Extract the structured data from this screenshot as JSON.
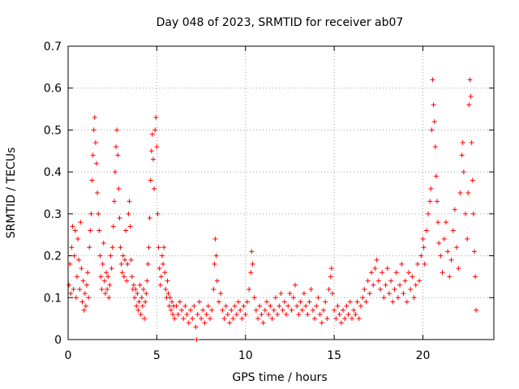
{
  "chart_data": {
    "type": "scatter",
    "title": "Day 048 of 2023, SRMTID for receiver ab07",
    "xlabel": "GPS time / hours",
    "ylabel": "SRMTID / TECUs",
    "xlim": [
      0,
      24
    ],
    "ylim": [
      0,
      0.7
    ],
    "xticks": [
      0,
      5,
      10,
      15,
      20
    ],
    "xtick_labels": [
      "0",
      "5",
      "10",
      "15",
      "20"
    ],
    "yticks": [
      0,
      0.1,
      0.2,
      0.3,
      0.4,
      0.5,
      0.6,
      0.7
    ],
    "ytick_labels": [
      "0",
      "0.1",
      "0.2",
      "0.3",
      "0.4",
      "0.5",
      "0.6",
      "0.7"
    ],
    "grid": true,
    "marker": "+",
    "color": "#ff0000",
    "series": [
      {
        "name": "SRMTID",
        "points": [
          [
            0.05,
            0.13
          ],
          [
            0.1,
            0.18
          ],
          [
            0.15,
            0.11
          ],
          [
            0.2,
            0.22
          ],
          [
            0.25,
            0.27
          ],
          [
            0.3,
            0.12
          ],
          [
            0.35,
            0.2
          ],
          [
            0.4,
            0.26
          ],
          [
            0.45,
            0.1
          ],
          [
            0.5,
            0.15
          ],
          [
            0.55,
            0.24
          ],
          [
            0.6,
            0.19
          ],
          [
            0.65,
            0.12
          ],
          [
            0.7,
            0.28
          ],
          [
            0.75,
            0.17
          ],
          [
            0.8,
            0.09
          ],
          [
            0.85,
            0.14
          ],
          [
            0.9,
            0.07
          ],
          [
            0.95,
            0.11
          ],
          [
            1.0,
            0.08
          ],
          [
            1.05,
            0.13
          ],
          [
            1.1,
            0.16
          ],
          [
            1.15,
            0.1
          ],
          [
            1.2,
            0.22
          ],
          [
            1.25,
            0.26
          ],
          [
            1.3,
            0.3
          ],
          [
            1.35,
            0.38
          ],
          [
            1.4,
            0.44
          ],
          [
            1.45,
            0.5
          ],
          [
            1.5,
            0.53
          ],
          [
            1.55,
            0.47
          ],
          [
            1.6,
            0.42
          ],
          [
            1.65,
            0.35
          ],
          [
            1.7,
            0.3
          ],
          [
            1.75,
            0.26
          ],
          [
            1.8,
            0.2
          ],
          [
            1.85,
            0.15
          ],
          [
            1.9,
            0.12
          ],
          [
            1.95,
            0.18
          ],
          [
            2.0,
            0.23
          ],
          [
            2.05,
            0.14
          ],
          [
            2.1,
            0.11
          ],
          [
            2.15,
            0.16
          ],
          [
            2.2,
            0.12
          ],
          [
            2.25,
            0.15
          ],
          [
            2.3,
            0.1
          ],
          [
            2.35,
            0.13
          ],
          [
            2.4,
            0.2
          ],
          [
            2.45,
            0.17
          ],
          [
            2.5,
            0.22
          ],
          [
            2.55,
            0.27
          ],
          [
            2.6,
            0.33
          ],
          [
            2.65,
            0.4
          ],
          [
            2.7,
            0.46
          ],
          [
            2.75,
            0.5
          ],
          [
            2.8,
            0.44
          ],
          [
            2.85,
            0.36
          ],
          [
            2.9,
            0.29
          ],
          [
            2.95,
            0.22
          ],
          [
            3.0,
            0.18
          ],
          [
            3.05,
            0.16
          ],
          [
            3.1,
            0.2
          ],
          [
            3.15,
            0.15
          ],
          [
            3.2,
            0.19
          ],
          [
            3.25,
            0.26
          ],
          [
            3.3,
            0.14
          ],
          [
            3.35,
            0.18
          ],
          [
            3.4,
            0.3
          ],
          [
            3.45,
            0.33
          ],
          [
            3.5,
            0.27
          ],
          [
            3.55,
            0.19
          ],
          [
            3.6,
            0.15
          ],
          [
            3.65,
            0.12
          ],
          [
            3.7,
            0.13
          ],
          [
            3.75,
            0.1
          ],
          [
            3.8,
            0.12
          ],
          [
            3.85,
            0.08
          ],
          [
            3.9,
            0.11
          ],
          [
            3.95,
            0.07
          ],
          [
            4.0,
            0.09
          ],
          [
            4.05,
            0.13
          ],
          [
            4.1,
            0.06
          ],
          [
            4.15,
            0.1
          ],
          [
            4.2,
            0.08
          ],
          [
            4.25,
            0.12
          ],
          [
            4.3,
            0.05
          ],
          [
            4.35,
            0.09
          ],
          [
            4.4,
            0.11
          ],
          [
            4.45,
            0.14
          ],
          [
            4.5,
            0.18
          ],
          [
            4.55,
            0.22
          ],
          [
            4.6,
            0.29
          ],
          [
            4.65,
            0.38
          ],
          [
            4.7,
            0.45
          ],
          [
            4.75,
            0.49
          ],
          [
            4.8,
            0.43
          ],
          [
            4.85,
            0.36
          ],
          [
            4.9,
            0.5
          ],
          [
            4.95,
            0.53
          ],
          [
            5.0,
            0.46
          ],
          [
            5.05,
            0.3
          ],
          [
            5.1,
            0.22
          ],
          [
            5.15,
            0.17
          ],
          [
            5.2,
            0.13
          ],
          [
            5.25,
            0.15
          ],
          [
            5.3,
            0.2
          ],
          [
            5.35,
            0.18
          ],
          [
            5.4,
            0.22
          ],
          [
            5.45,
            0.16
          ],
          [
            5.5,
            0.12
          ],
          [
            5.55,
            0.1
          ],
          [
            5.6,
            0.14
          ],
          [
            5.65,
            0.11
          ],
          [
            5.7,
            0.08
          ],
          [
            5.75,
            0.1
          ],
          [
            5.8,
            0.07
          ],
          [
            5.85,
            0.09
          ],
          [
            5.9,
            0.06
          ],
          [
            5.95,
            0.08
          ],
          [
            6.0,
            0.05
          ],
          [
            6.1,
            0.08
          ],
          [
            6.2,
            0.06
          ],
          [
            6.3,
            0.09
          ],
          [
            6.4,
            0.07
          ],
          [
            6.5,
            0.05
          ],
          [
            6.6,
            0.08
          ],
          [
            6.7,
            0.06
          ],
          [
            6.8,
            0.04
          ],
          [
            6.9,
            0.07
          ],
          [
            7.0,
            0.05
          ],
          [
            7.1,
            0.08
          ],
          [
            7.2,
            0.03
          ],
          [
            7.25,
            0.0
          ],
          [
            7.3,
            0.06
          ],
          [
            7.4,
            0.09
          ],
          [
            7.5,
            0.05
          ],
          [
            7.6,
            0.07
          ],
          [
            7.7,
            0.04
          ],
          [
            7.8,
            0.06
          ],
          [
            7.9,
            0.08
          ],
          [
            8.0,
            0.05
          ],
          [
            8.1,
            0.07
          ],
          [
            8.2,
            0.12
          ],
          [
            8.25,
            0.18
          ],
          [
            8.3,
            0.24
          ],
          [
            8.35,
            0.2
          ],
          [
            8.4,
            0.14
          ],
          [
            8.5,
            0.09
          ],
          [
            8.6,
            0.11
          ],
          [
            8.7,
            0.07
          ],
          [
            8.8,
            0.05
          ],
          [
            8.9,
            0.08
          ],
          [
            9.0,
            0.06
          ],
          [
            9.1,
            0.04
          ],
          [
            9.2,
            0.07
          ],
          [
            9.3,
            0.05
          ],
          [
            9.4,
            0.08
          ],
          [
            9.5,
            0.06
          ],
          [
            9.6,
            0.09
          ],
          [
            9.7,
            0.07
          ],
          [
            9.8,
            0.05
          ],
          [
            9.9,
            0.08
          ],
          [
            10.0,
            0.06
          ],
          [
            10.1,
            0.09
          ],
          [
            10.2,
            0.12
          ],
          [
            10.3,
            0.16
          ],
          [
            10.35,
            0.21
          ],
          [
            10.4,
            0.18
          ],
          [
            10.5,
            0.1
          ],
          [
            10.6,
            0.07
          ],
          [
            10.7,
            0.05
          ],
          [
            10.8,
            0.08
          ],
          [
            10.9,
            0.06
          ],
          [
            11.0,
            0.04
          ],
          [
            11.1,
            0.07
          ],
          [
            11.2,
            0.09
          ],
          [
            11.3,
            0.06
          ],
          [
            11.4,
            0.08
          ],
          [
            11.5,
            0.05
          ],
          [
            11.6,
            0.07
          ],
          [
            11.7,
            0.1
          ],
          [
            11.8,
            0.06
          ],
          [
            11.9,
            0.08
          ],
          [
            12.0,
            0.11
          ],
          [
            12.1,
            0.07
          ],
          [
            12.2,
            0.09
          ],
          [
            12.3,
            0.06
          ],
          [
            12.4,
            0.08
          ],
          [
            12.5,
            0.11
          ],
          [
            12.6,
            0.07
          ],
          [
            12.7,
            0.1
          ],
          [
            12.8,
            0.13
          ],
          [
            12.9,
            0.08
          ],
          [
            13.0,
            0.06
          ],
          [
            13.1,
            0.09
          ],
          [
            13.2,
            0.07
          ],
          [
            13.3,
            0.11
          ],
          [
            13.4,
            0.08
          ],
          [
            13.5,
            0.06
          ],
          [
            13.6,
            0.09
          ],
          [
            13.7,
            0.12
          ],
          [
            13.8,
            0.07
          ],
          [
            13.9,
            0.05
          ],
          [
            14.0,
            0.08
          ],
          [
            14.1,
            0.1
          ],
          [
            14.2,
            0.06
          ],
          [
            14.3,
            0.04
          ],
          [
            14.4,
            0.07
          ],
          [
            14.5,
            0.09
          ],
          [
            14.6,
            0.05
          ],
          [
            14.7,
            0.12
          ],
          [
            14.8,
            0.15
          ],
          [
            14.85,
            0.17
          ],
          [
            14.9,
            0.11
          ],
          [
            15.0,
            0.07
          ],
          [
            15.1,
            0.05
          ],
          [
            15.2,
            0.08
          ],
          [
            15.3,
            0.06
          ],
          [
            15.4,
            0.04
          ],
          [
            15.5,
            0.07
          ],
          [
            15.6,
            0.05
          ],
          [
            15.7,
            0.08
          ],
          [
            15.8,
            0.06
          ],
          [
            15.9,
            0.09
          ],
          [
            16.0,
            0.05
          ],
          [
            16.1,
            0.07
          ],
          [
            16.2,
            0.06
          ],
          [
            16.3,
            0.09
          ],
          [
            16.4,
            0.05
          ],
          [
            16.5,
            0.08
          ],
          [
            16.6,
            0.1
          ],
          [
            16.7,
            0.12
          ],
          [
            16.8,
            0.09
          ],
          [
            16.9,
            0.14
          ],
          [
            17.0,
            0.11
          ],
          [
            17.1,
            0.16
          ],
          [
            17.2,
            0.13
          ],
          [
            17.3,
            0.17
          ],
          [
            17.4,
            0.19
          ],
          [
            17.5,
            0.14
          ],
          [
            17.6,
            0.12
          ],
          [
            17.7,
            0.16
          ],
          [
            17.8,
            0.1
          ],
          [
            17.9,
            0.13
          ],
          [
            18.0,
            0.17
          ],
          [
            18.1,
            0.11
          ],
          [
            18.2,
            0.14
          ],
          [
            18.3,
            0.09
          ],
          [
            18.4,
            0.12
          ],
          [
            18.5,
            0.16
          ],
          [
            18.6,
            0.1
          ],
          [
            18.7,
            0.13
          ],
          [
            18.8,
            0.18
          ],
          [
            18.9,
            0.11
          ],
          [
            19.0,
            0.14
          ],
          [
            19.1,
            0.09
          ],
          [
            19.2,
            0.16
          ],
          [
            19.3,
            0.12
          ],
          [
            19.4,
            0.15
          ],
          [
            19.5,
            0.1
          ],
          [
            19.6,
            0.13
          ],
          [
            19.7,
            0.18
          ],
          [
            19.8,
            0.14
          ],
          [
            19.9,
            0.2
          ],
          [
            20.0,
            0.24
          ],
          [
            20.05,
            0.22
          ],
          [
            20.1,
            0.18
          ],
          [
            20.2,
            0.26
          ],
          [
            20.3,
            0.3
          ],
          [
            20.4,
            0.33
          ],
          [
            20.45,
            0.36
          ],
          [
            20.5,
            0.5
          ],
          [
            20.55,
            0.62
          ],
          [
            20.6,
            0.56
          ],
          [
            20.65,
            0.52
          ],
          [
            20.7,
            0.46
          ],
          [
            20.75,
            0.39
          ],
          [
            20.8,
            0.33
          ],
          [
            20.85,
            0.28
          ],
          [
            20.9,
            0.23
          ],
          [
            21.0,
            0.2
          ],
          [
            21.1,
            0.16
          ],
          [
            21.2,
            0.24
          ],
          [
            21.3,
            0.28
          ],
          [
            21.4,
            0.21
          ],
          [
            21.5,
            0.15
          ],
          [
            21.6,
            0.19
          ],
          [
            21.7,
            0.26
          ],
          [
            21.8,
            0.31
          ],
          [
            21.9,
            0.22
          ],
          [
            22.0,
            0.17
          ],
          [
            22.1,
            0.35
          ],
          [
            22.2,
            0.44
          ],
          [
            22.25,
            0.47
          ],
          [
            22.3,
            0.4
          ],
          [
            22.4,
            0.3
          ],
          [
            22.5,
            0.24
          ],
          [
            22.55,
            0.35
          ],
          [
            22.6,
            0.56
          ],
          [
            22.65,
            0.62
          ],
          [
            22.7,
            0.58
          ],
          [
            22.75,
            0.47
          ],
          [
            22.8,
            0.38
          ],
          [
            22.85,
            0.3
          ],
          [
            22.9,
            0.21
          ],
          [
            22.95,
            0.15
          ],
          [
            23.0,
            0.07
          ]
        ]
      }
    ]
  }
}
